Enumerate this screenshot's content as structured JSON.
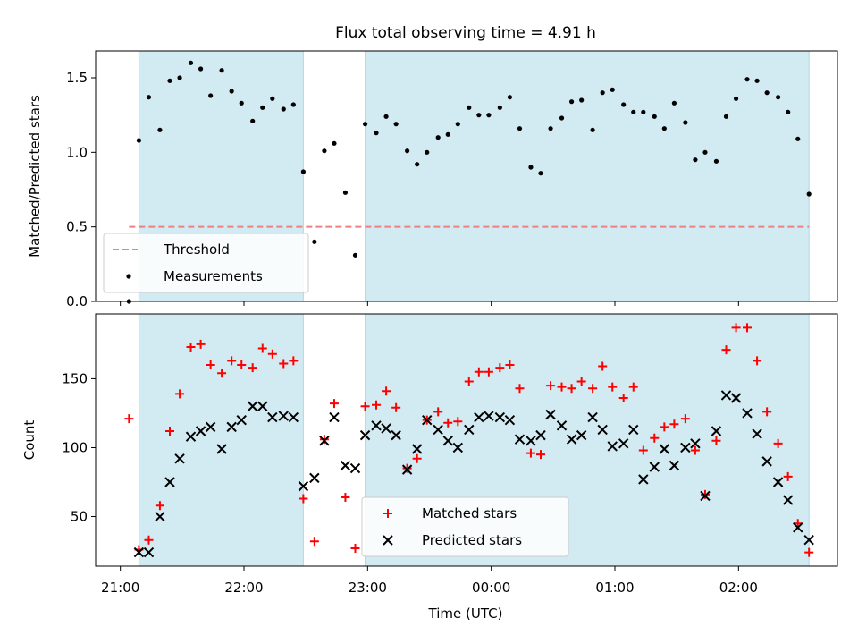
{
  "title": "Flux total observing time = 4.91 h",
  "colors": {
    "shade": "#add8e6",
    "threshold": "#f08080",
    "matched": "#ff0000",
    "predicted": "#000000",
    "measurement": "#000000"
  },
  "chart_data": [
    {
      "type": "scatter",
      "name": "ratio-panel",
      "ylabel": "Matched/Predicted stars",
      "xlabel": "",
      "xlim": [
        20.8,
        26.8
      ],
      "ylim": [
        0,
        1.68
      ],
      "yticks": [
        0.0,
        0.5,
        1.0,
        1.5
      ],
      "ytick_labels": [
        "0.0",
        "0.5",
        "1.0",
        "1.5"
      ],
      "shaded_intervals": [
        [
          21.15,
          22.48
        ],
        [
          22.98,
          26.57
        ]
      ],
      "threshold": {
        "label": "Threshold",
        "value": 0.5,
        "x_range": [
          21.07,
          26.57
        ]
      },
      "legend": {
        "position": "lower-left",
        "entries": [
          "Threshold",
          "Measurements"
        ]
      },
      "series": [
        {
          "name": "Measurements",
          "x": [
            21.07,
            21.15,
            21.23,
            21.32,
            21.4,
            21.48,
            21.57,
            21.65,
            21.73,
            21.82,
            21.9,
            21.98,
            22.07,
            22.15,
            22.23,
            22.32,
            22.4,
            22.48,
            22.57,
            22.65,
            22.73,
            22.82,
            22.9,
            22.98,
            23.07,
            23.15,
            23.23,
            23.32,
            23.4,
            23.48,
            23.57,
            23.65,
            23.73,
            23.82,
            23.9,
            23.98,
            24.07,
            24.15,
            24.23,
            24.32,
            24.4,
            24.48,
            24.57,
            24.65,
            24.73,
            24.82,
            24.9,
            24.98,
            25.07,
            25.15,
            25.23,
            25.32,
            25.4,
            25.48,
            25.57,
            25.65,
            25.73,
            25.82,
            25.9,
            25.98,
            26.07,
            26.15,
            26.23,
            26.32,
            26.4,
            26.48,
            26.57
          ],
          "y": [
            0.0,
            1.08,
            1.37,
            1.15,
            1.48,
            1.5,
            1.6,
            1.56,
            1.38,
            1.55,
            1.41,
            1.33,
            1.21,
            1.3,
            1.36,
            1.29,
            1.32,
            0.87,
            0.4,
            1.01,
            1.06,
            0.73,
            0.31,
            1.19,
            1.13,
            1.24,
            1.19,
            1.01,
            0.92,
            1.0,
            1.1,
            1.12,
            1.19,
            1.3,
            1.25,
            1.25,
            1.3,
            1.37,
            1.16,
            0.9,
            0.86,
            1.16,
            1.23,
            1.34,
            1.35,
            1.15,
            1.4,
            1.42,
            1.32,
            1.27,
            1.27,
            1.24,
            1.16,
            1.33,
            1.2,
            0.95,
            1.0,
            0.94,
            1.24,
            1.36,
            1.49,
            1.48,
            1.4,
            1.37,
            1.27,
            1.09,
            0.72
          ]
        }
      ]
    },
    {
      "type": "scatter",
      "name": "count-panel",
      "ylabel": "Count",
      "xlabel": "Time (UTC)",
      "xlim": [
        20.8,
        26.8
      ],
      "ylim": [
        14,
        197
      ],
      "yticks": [
        50,
        100,
        150
      ],
      "ytick_labels": [
        "50",
        "100",
        "150"
      ],
      "xticks": [
        21,
        22,
        23,
        24,
        25,
        26
      ],
      "xtick_labels": [
        "21:00",
        "22:00",
        "23:00",
        "00:00",
        "01:00",
        "02:00"
      ],
      "shaded_intervals": [
        [
          21.15,
          22.48
        ],
        [
          22.98,
          26.57
        ]
      ],
      "legend": {
        "position": "lower-center",
        "entries": [
          "Matched stars",
          "Predicted stars"
        ]
      },
      "series": [
        {
          "name": "Matched stars",
          "x": [
            21.07,
            21.15,
            21.23,
            21.32,
            21.4,
            21.48,
            21.57,
            21.65,
            21.73,
            21.82,
            21.9,
            21.98,
            22.07,
            22.15,
            22.23,
            22.32,
            22.4,
            22.48,
            22.57,
            22.65,
            22.73,
            22.82,
            22.9,
            22.98,
            23.07,
            23.15,
            23.23,
            23.32,
            23.4,
            23.48,
            23.57,
            23.65,
            23.73,
            23.82,
            23.9,
            23.98,
            24.07,
            24.15,
            24.23,
            24.32,
            24.4,
            24.48,
            24.57,
            24.65,
            24.73,
            24.82,
            24.9,
            24.98,
            25.07,
            25.15,
            25.23,
            25.32,
            25.4,
            25.48,
            25.57,
            25.65,
            25.73,
            25.82,
            25.9,
            25.98,
            26.07,
            26.15,
            26.23,
            26.32,
            26.4,
            26.48,
            26.57
          ],
          "y": [
            121,
            26,
            33,
            58,
            112,
            139,
            173,
            175,
            160,
            154,
            163,
            160,
            158,
            172,
            168,
            161,
            163,
            63,
            32,
            106,
            132,
            64,
            27,
            130,
            131,
            141,
            129,
            85,
            92,
            120,
            126,
            118,
            119,
            148,
            155,
            155,
            158,
            160,
            143,
            96,
            95,
            145,
            144,
            143,
            148,
            143,
            159,
            144,
            136,
            144,
            98,
            107,
            115,
            117,
            121,
            98,
            66,
            105,
            171,
            187,
            187,
            163,
            126,
            103,
            79,
            45,
            24
          ]
        },
        {
          "name": "Predicted stars",
          "x": [
            21.15,
            21.23,
            21.32,
            21.4,
            21.48,
            21.57,
            21.65,
            21.73,
            21.82,
            21.9,
            21.98,
            22.07,
            22.15,
            22.23,
            22.32,
            22.4,
            22.48,
            22.57,
            22.65,
            22.73,
            22.82,
            22.9,
            22.98,
            23.07,
            23.15,
            23.23,
            23.32,
            23.4,
            23.48,
            23.57,
            23.65,
            23.73,
            23.82,
            23.9,
            23.98,
            24.07,
            24.15,
            24.23,
            24.32,
            24.4,
            24.48,
            24.57,
            24.65,
            24.73,
            24.82,
            24.9,
            24.98,
            25.07,
            25.15,
            25.23,
            25.32,
            25.4,
            25.48,
            25.57,
            25.65,
            25.73,
            25.82,
            25.9,
            25.98,
            26.07,
            26.15,
            26.23,
            26.32,
            26.4,
            26.48,
            26.57
          ],
          "y": [
            24,
            24,
            50,
            75,
            92,
            108,
            112,
            115,
            99,
            115,
            120,
            130,
            130,
            122,
            123,
            122,
            72,
            78,
            105,
            122,
            87,
            85,
            109,
            116,
            114,
            109,
            84,
            99,
            120,
            113,
            105,
            100,
            113,
            122,
            123,
            122,
            120,
            106,
            105,
            109,
            124,
            116,
            106,
            109,
            122,
            113,
            101,
            103,
            113,
            77,
            86,
            99,
            87,
            100,
            103,
            65,
            112,
            138,
            136,
            125,
            110,
            90,
            75,
            62,
            42,
            33
          ]
        }
      ]
    }
  ]
}
